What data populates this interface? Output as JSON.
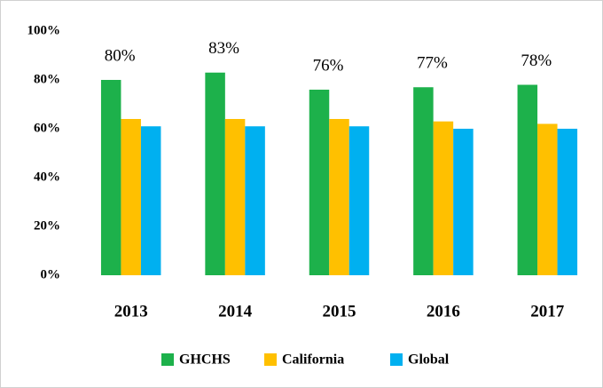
{
  "chart_data": {
    "type": "bar",
    "categories": [
      "2013",
      "2014",
      "2015",
      "2016",
      "2017"
    ],
    "series": [
      {
        "name": "GHCHS",
        "color": "#1db14b",
        "values": [
          80,
          83,
          76,
          77,
          78
        ],
        "value_labels": [
          "80%",
          "83%",
          "76%",
          "77%",
          "78%"
        ]
      },
      {
        "name": "California",
        "color": "#ffc000",
        "values": [
          64,
          64,
          64,
          63,
          62
        ]
      },
      {
        "name": "Global",
        "color": "#00b0f0",
        "values": [
          61,
          61,
          61,
          60,
          60
        ]
      }
    ],
    "ylim": [
      0,
      100
    ],
    "yticks": [
      {
        "value": 0,
        "label": "0%"
      },
      {
        "value": 20,
        "label": "20%"
      },
      {
        "value": 40,
        "label": "40%"
      },
      {
        "value": 60,
        "label": "60%"
      },
      {
        "value": 80,
        "label": "80%"
      },
      {
        "value": 100,
        "label": "100%"
      }
    ],
    "grid": false,
    "legend": "bottom"
  }
}
